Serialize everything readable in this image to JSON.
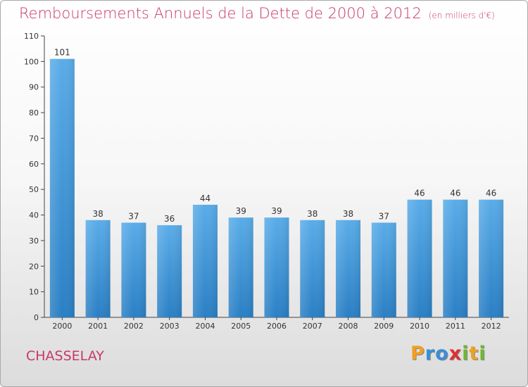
{
  "title": "Remboursements Annuels de la Dette de 2000 à 2012",
  "unit_note": "(en milliers d'€)",
  "commune": "CHASSELAY",
  "logo": {
    "text": "Proxiti",
    "letters": [
      "P",
      "r",
      "o",
      "x",
      "i",
      "t",
      "i"
    ],
    "colors": [
      "#f0a020",
      "#3a8fd8",
      "#3a8fd8",
      "#e03030",
      "#70b830",
      "#f0a020",
      "#70b830"
    ]
  },
  "chart_data": {
    "type": "bar",
    "title": "Remboursements Annuels de la Dette de 2000 à 2012",
    "categories": [
      "2000",
      "2001",
      "2002",
      "2003",
      "2004",
      "2005",
      "2006",
      "2007",
      "2008",
      "2009",
      "2010",
      "2011",
      "2012"
    ],
    "values": [
      101,
      38,
      37,
      36,
      44,
      39,
      39,
      38,
      38,
      37,
      46,
      46,
      46
    ],
    "data_labels": [
      "101",
      "38",
      "37",
      "36",
      "44",
      "39",
      "39",
      "38",
      "38",
      "37",
      "46",
      "46",
      "46"
    ],
    "ylim": [
      0,
      110
    ],
    "yticks": [
      0,
      10,
      20,
      30,
      40,
      50,
      60,
      70,
      80,
      90,
      100,
      110
    ],
    "grid": false,
    "bar_color_top": "#5aace8",
    "bar_color_bottom": "#2a7fc4"
  }
}
